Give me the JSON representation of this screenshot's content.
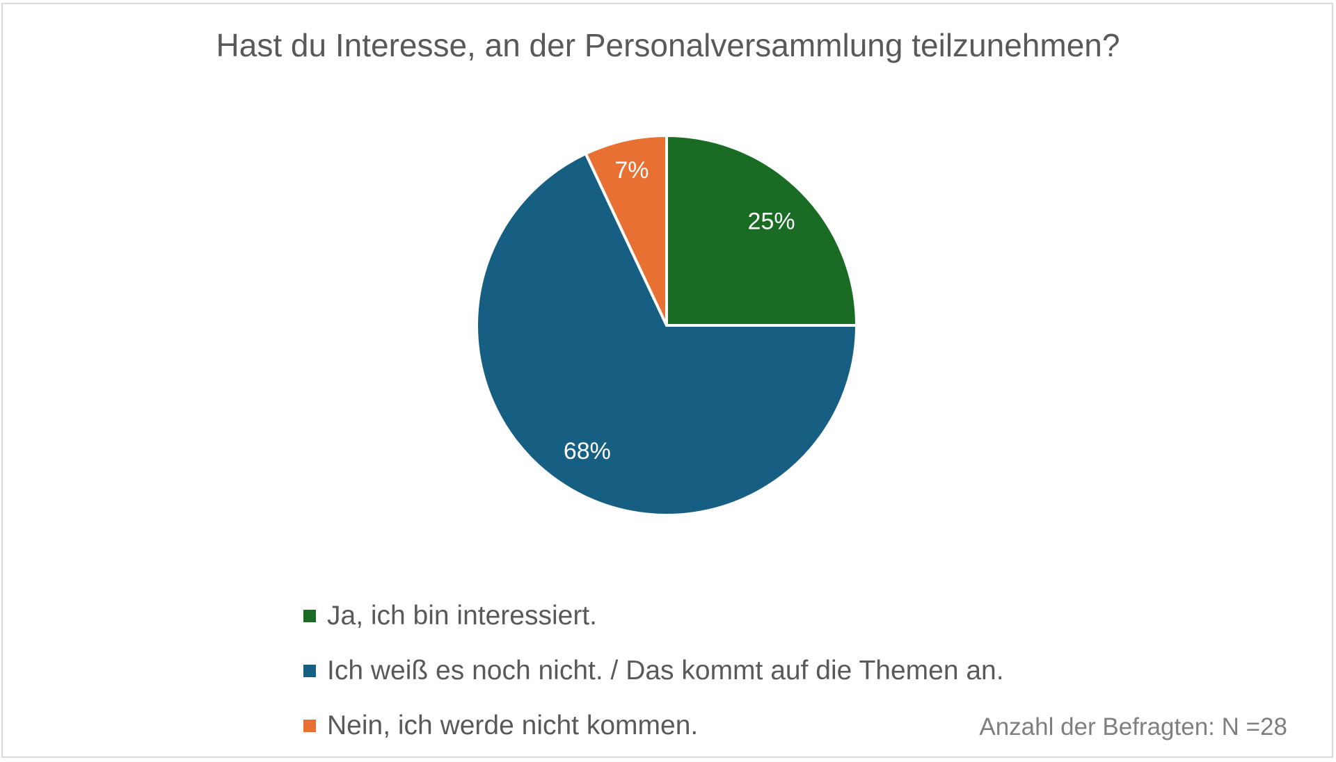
{
  "chart_data": {
    "type": "pie",
    "title": "Hast du Interesse, an der Personalversammlung teilzunehmen?",
    "categories": [
      "Ja, ich bin interessiert.",
      "Ich weiß es noch nicht. / Das kommt auf die Themen an.",
      "Nein, ich werde nicht kommen."
    ],
    "values": [
      25,
      68,
      7
    ],
    "data_labels": [
      "25%",
      "68%",
      "7%"
    ],
    "colors": [
      "#1a6b24",
      "#175f82",
      "#e87033"
    ],
    "legend_position": "bottom-left",
    "annotation": "Anzahl der Befragten: N =28"
  }
}
